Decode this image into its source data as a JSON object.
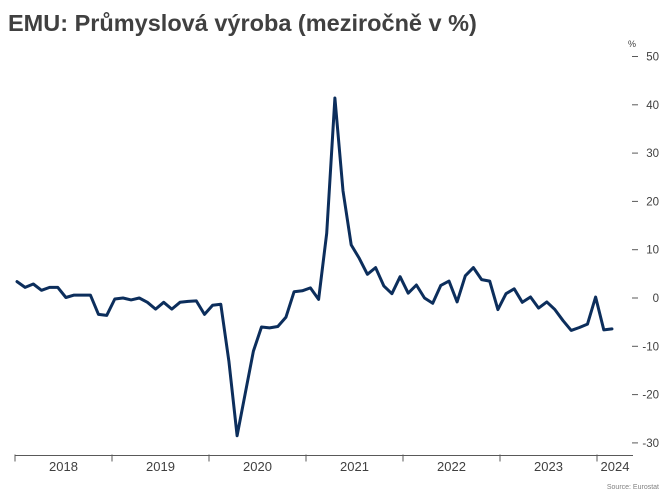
{
  "chart_data": {
    "type": "line",
    "title": "EMU: Průmyslová výroba (meziročně v %)",
    "xlabel": "",
    "ylabel": "%",
    "ylim": [
      -30,
      50
    ],
    "y_ticks": [
      50,
      40,
      30,
      20,
      10,
      0,
      -10,
      -20,
      -30
    ],
    "x_tick_labels": [
      "2018",
      "2019",
      "2020",
      "2021",
      "2022",
      "2023",
      "2024"
    ],
    "grid": false,
    "x": [
      "2018-01",
      "2018-02",
      "2018-03",
      "2018-04",
      "2018-05",
      "2018-06",
      "2018-07",
      "2018-08",
      "2018-09",
      "2018-10",
      "2018-11",
      "2018-12",
      "2019-01",
      "2019-02",
      "2019-03",
      "2019-04",
      "2019-05",
      "2019-06",
      "2019-07",
      "2019-08",
      "2019-09",
      "2019-10",
      "2019-11",
      "2019-12",
      "2020-01",
      "2020-02",
      "2020-03",
      "2020-04",
      "2020-05",
      "2020-06",
      "2020-07",
      "2020-08",
      "2020-09",
      "2020-10",
      "2020-11",
      "2020-12",
      "2021-01",
      "2021-02",
      "2021-03",
      "2021-04",
      "2021-05",
      "2021-06",
      "2021-07",
      "2021-08",
      "2021-09",
      "2021-10",
      "2021-11",
      "2021-12",
      "2022-01",
      "2022-02",
      "2022-03",
      "2022-04",
      "2022-05",
      "2022-06",
      "2022-07",
      "2022-08",
      "2022-09",
      "2022-10",
      "2022-11",
      "2022-12",
      "2023-01",
      "2023-02",
      "2023-03",
      "2023-04",
      "2023-05",
      "2023-06",
      "2023-07",
      "2023-08",
      "2023-09",
      "2023-10",
      "2023-11",
      "2023-12",
      "2024-01",
      "2024-02"
    ],
    "series": [
      {
        "color": "#0c2e5c",
        "values": [
          3.4,
          2.2,
          2.9,
          1.6,
          2.2,
          2.2,
          0.1,
          0.6,
          0.6,
          0.6,
          -3.4,
          -3.6,
          -0.2,
          0.0,
          -0.4,
          0.0,
          -0.9,
          -2.3,
          -0.9,
          -2.3,
          -0.9,
          -0.7,
          -0.6,
          -3.4,
          -1.5,
          -1.3,
          -13.1,
          -28.5,
          -19.8,
          -11.0,
          -6.0,
          -6.2,
          -5.9,
          -4.0,
          1.3,
          1.5,
          2.1,
          -0.3,
          13.4,
          41.4,
          22.2,
          11.0,
          8.2,
          4.9,
          6.3,
          2.5,
          0.9,
          4.4,
          1.0,
          2.7,
          0.0,
          -1.1,
          2.6,
          3.5,
          -0.8,
          4.6,
          6.3,
          3.8,
          3.5,
          -2.4,
          0.9,
          1.9,
          -0.9,
          0.2,
          -2.1,
          -0.8,
          -2.4,
          -4.7,
          -6.7,
          -6.1,
          -5.4,
          0.2,
          -6.6,
          -6.4
        ]
      }
    ]
  },
  "source": "Source: Eurostat",
  "colors": {
    "text": "#404040",
    "axis": "#595959",
    "source_text": "#808080"
  }
}
